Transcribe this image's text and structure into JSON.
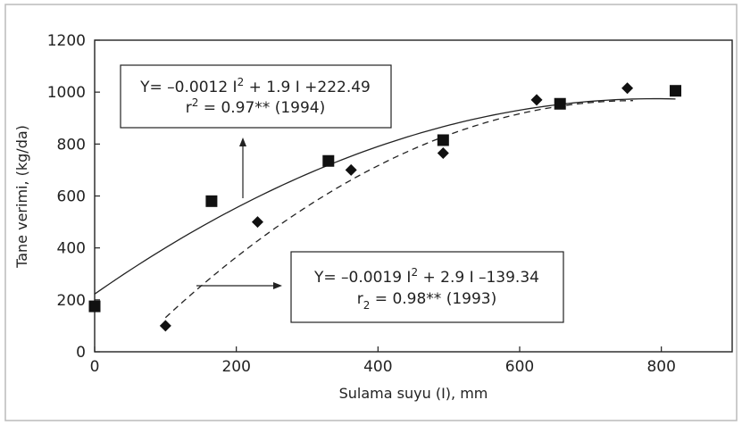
{
  "chart_data": {
    "type": "scatter",
    "xlabel": "Sulama suyu (I), mm",
    "ylabel": "Tane verimi, (kg/da)",
    "xlim": [
      0,
      900
    ],
    "ylim": [
      0,
      1200
    ],
    "xticks": [
      0,
      200,
      400,
      600,
      800
    ],
    "yticks": [
      0,
      200,
      400,
      600,
      800,
      1000,
      1200
    ],
    "grid": false,
    "series": [
      {
        "marker": "square",
        "line_style": "solid",
        "x": [
          0,
          165,
          330,
          492,
          657,
          820
        ],
        "y": [
          175,
          580,
          735,
          815,
          955,
          1005
        ],
        "fit": {
          "a": -0.0012,
          "b": 1.9,
          "c": 222.49,
          "x_range": [
            0,
            820
          ]
        }
      },
      {
        "marker": "diamond",
        "line_style": "dashed",
        "x": [
          100,
          230,
          362,
          492,
          624,
          752
        ],
        "y": [
          100,
          500,
          700,
          765,
          970,
          1015
        ],
        "fit": {
          "a": -0.0019,
          "b": 2.9,
          "c": -139.34,
          "x_range": [
            100,
            760
          ]
        }
      }
    ],
    "annotations": [
      {
        "line1": "Y= –0.0012 I",
        "sup": "2",
        "line1_rest": " + 1.9 I +222.49",
        "line2": "r",
        "line2_sup": "2",
        "line2_rest": " = 0.97** (1994)"
      },
      {
        "line1": "Y= –0.0019 I",
        "sup": "2",
        "line1_rest": " + 2.9 I –139.34",
        "line2": "r",
        "line2_sub": "2",
        "line2_rest": " = 0.98** (1993)"
      }
    ]
  }
}
